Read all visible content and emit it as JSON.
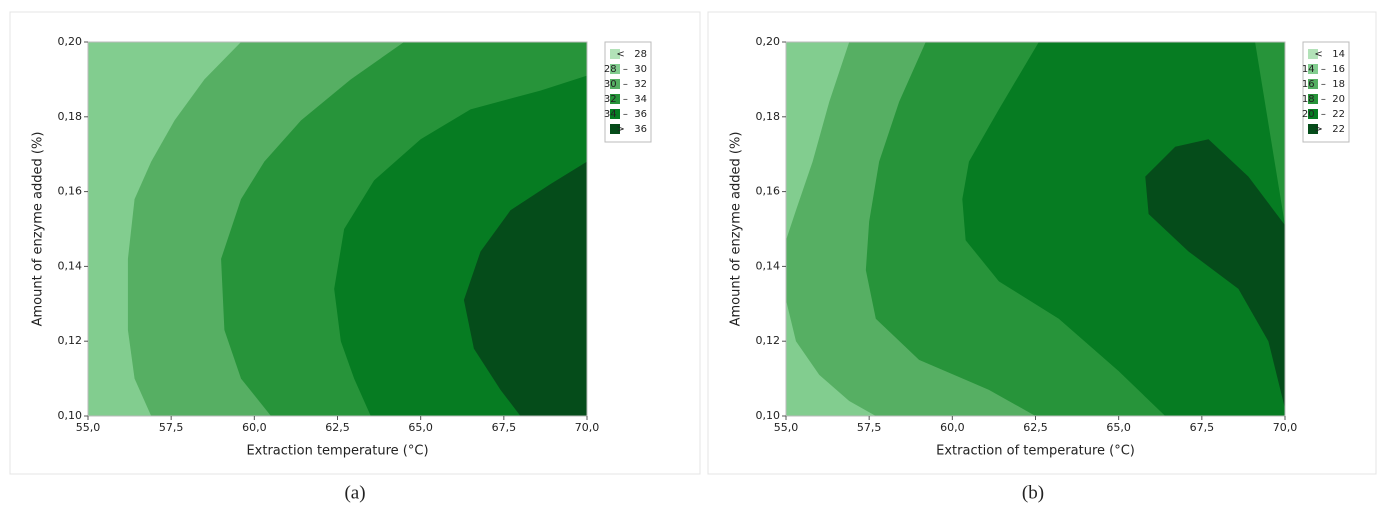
{
  "chart_data": [
    {
      "type": "contour",
      "panel_label": "(a)",
      "x_label": "Extraction temperature (°C)",
      "y_label": "Amount of enzyme added (%)",
      "xlim": [
        55,
        70
      ],
      "ylim": [
        0.1,
        0.2
      ],
      "xticks": [
        {
          "value": 55,
          "label": "55,0"
        },
        {
          "value": 57.5,
          "label": "57,5"
        },
        {
          "value": 60,
          "label": "60,0"
        },
        {
          "value": 62.5,
          "label": "62,5"
        },
        {
          "value": 65,
          "label": "65,0"
        },
        {
          "value": 67.5,
          "label": "67,5"
        },
        {
          "value": 70,
          "label": "70,0"
        }
      ],
      "yticks": [
        {
          "value": 0.1,
          "label": "0,10"
        },
        {
          "value": 0.12,
          "label": "0,12"
        },
        {
          "value": 0.14,
          "label": "0,14"
        },
        {
          "value": 0.16,
          "label": "0,16"
        },
        {
          "value": 0.18,
          "label": "0,18"
        },
        {
          "value": 0.2,
          "label": "0,20"
        }
      ],
      "legend": [
        {
          "label": "<   28",
          "color": "#b2e2b8"
        },
        {
          "label": "28  –  30",
          "color": "#82cd8f"
        },
        {
          "label": "30  –  32",
          "color": "#56af63"
        },
        {
          "label": "32  –  34",
          "color": "#27943a"
        },
        {
          "label": "34  –  36",
          "color": "#067c22"
        },
        {
          "label": ">   36",
          "color": "#054c1a"
        }
      ],
      "base_color": "#82cd8f",
      "contours": [
        {
          "color": "#56af63",
          "x": [
            59.6,
            58.5,
            57.6,
            56.9,
            56.4,
            56.2,
            56.2,
            56.4,
            56.9
          ],
          "y": [
            0.2,
            0.19,
            0.179,
            0.168,
            0.158,
            0.142,
            0.123,
            0.11,
            0.1
          ]
        },
        {
          "color": "#27943a",
          "x": [
            64.5,
            62.9,
            61.4,
            60.3,
            59.6,
            59.0,
            59.1,
            59.6,
            60.5
          ],
          "y": [
            0.2,
            0.19,
            0.179,
            0.168,
            0.158,
            0.142,
            0.123,
            0.11,
            0.1
          ]
        },
        {
          "color": "#067c22",
          "x": [
            70,
            68.6,
            66.5,
            65.0,
            63.6,
            62.7,
            62.4,
            62.6,
            63.0,
            63.5
          ],
          "y": [
            0.191,
            0.187,
            0.182,
            0.174,
            0.163,
            0.15,
            0.134,
            0.12,
            0.11,
            0.1
          ]
        },
        {
          "color": "#054c1a",
          "x": [
            70,
            68.9,
            67.7,
            66.8,
            66.3,
            66.6,
            67.4,
            68.0
          ],
          "y": [
            0.168,
            0.162,
            0.155,
            0.144,
            0.131,
            0.118,
            0.107,
            0.1
          ]
        }
      ]
    },
    {
      "type": "contour",
      "panel_label": "(b)",
      "x_label": "Extraction of temperature (°C)",
      "y_label": "Amount of enzyme added (%)",
      "xlim": [
        55,
        70
      ],
      "ylim": [
        0.1,
        0.2
      ],
      "xticks": [
        {
          "value": 55,
          "label": "55,0"
        },
        {
          "value": 57.5,
          "label": "57,5"
        },
        {
          "value": 60,
          "label": "60,0"
        },
        {
          "value": 62.5,
          "label": "62,5"
        },
        {
          "value": 65,
          "label": "65,0"
        },
        {
          "value": 67.5,
          "label": "67,5"
        },
        {
          "value": 70,
          "label": "70,0"
        }
      ],
      "yticks": [
        {
          "value": 0.1,
          "label": "0,10"
        },
        {
          "value": 0.12,
          "label": "0,12"
        },
        {
          "value": 0.14,
          "label": "0,14"
        },
        {
          "value": 0.16,
          "label": "0,16"
        },
        {
          "value": 0.18,
          "label": "0,18"
        },
        {
          "value": 0.2,
          "label": "0,20"
        }
      ],
      "legend": [
        {
          "label": "<   14",
          "color": "#b2e2b8"
        },
        {
          "label": "14  –  16",
          "color": "#82cd8f"
        },
        {
          "label": "16  –  18",
          "color": "#56af63"
        },
        {
          "label": "18  –  20",
          "color": "#27943a"
        },
        {
          "label": "20  –  22",
          "color": "#067c22"
        },
        {
          "label": ">   22",
          "color": "#054c1a"
        }
      ],
      "base_color": "#82cd8f",
      "contours": [
        {
          "color": "#56af63",
          "x": [
            56.9,
            56.3,
            55.8,
            55.3,
            55,
            55,
            55.3,
            56.0,
            56.9,
            57.7
          ],
          "y": [
            0.2,
            0.184,
            0.168,
            0.155,
            0.147,
            0.131,
            0.12,
            0.111,
            0.104,
            0.1
          ]
        },
        {
          "color": "#27943a",
          "x": [
            59.2,
            58.4,
            57.8,
            57.5,
            57.4,
            57.7,
            59.0,
            61.1,
            62.5
          ],
          "y": [
            0.2,
            0.184,
            0.168,
            0.152,
            0.139,
            0.126,
            0.115,
            0.107,
            0.1
          ]
        },
        {
          "color": "#067c22",
          "x": [
            70,
            69.1,
            62.6,
            61.4,
            60.5,
            60.3,
            60.4,
            61.4,
            63.2,
            65.0,
            66.4
          ],
          "y": [
            0.151,
            0.2,
            0.2,
            0.182,
            0.168,
            0.158,
            0.147,
            0.136,
            0.126,
            0.112,
            0.1
          ]
        },
        {
          "color": "#054c1a",
          "x": [
            70,
            68.9,
            67.7,
            66.7,
            65.8,
            65.9,
            67.1,
            68.6,
            69.5,
            70
          ],
          "y": [
            0.151,
            0.164,
            0.174,
            0.172,
            0.164,
            0.154,
            0.144,
            0.134,
            0.12,
            0.102
          ]
        }
      ]
    }
  ]
}
